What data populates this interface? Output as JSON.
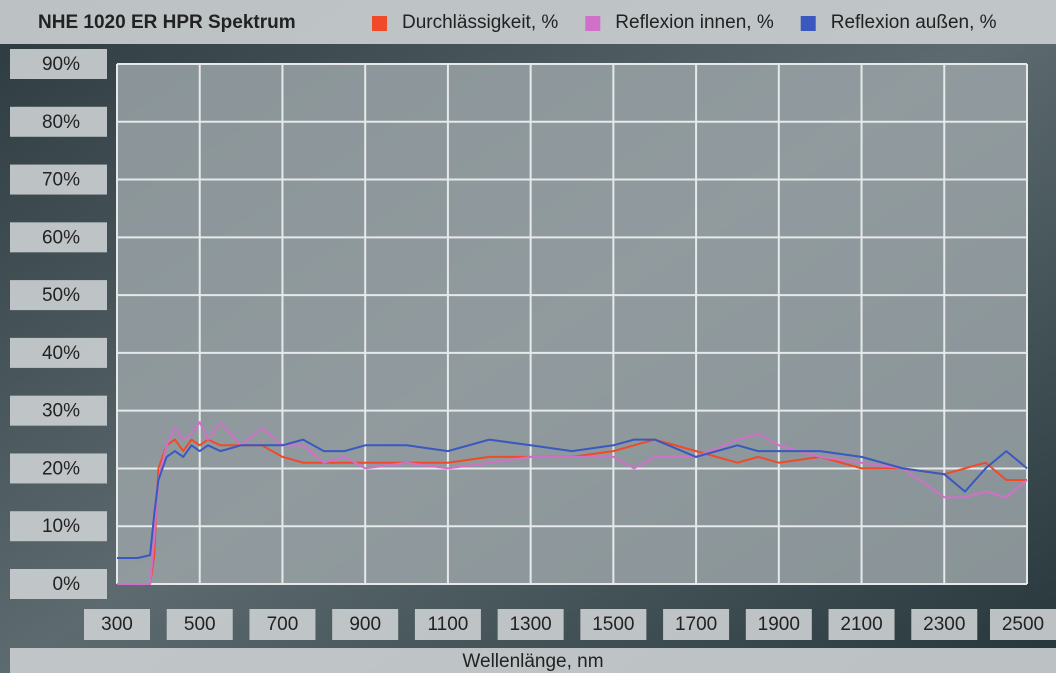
{
  "chart_data": {
    "type": "line",
    "title": "NHE 1020 ER HPR Spektrum",
    "x_label": "Wellenlänge, nm",
    "x": [
      300,
      350,
      380,
      390,
      400,
      420,
      440,
      460,
      480,
      500,
      520,
      550,
      600,
      650,
      700,
      750,
      800,
      850,
      900,
      1000,
      1100,
      1200,
      1300,
      1400,
      1500,
      1550,
      1600,
      1700,
      1800,
      1850,
      1900,
      2000,
      2100,
      2200,
      2300,
      2350,
      2400,
      2450,
      2500
    ],
    "series": [
      {
        "name": "Durchlässigkeit, %",
        "color": "#f04a28",
        "values": [
          0,
          0,
          0,
          5,
          20,
          24,
          25,
          23,
          25,
          24,
          25,
          24,
          24,
          24,
          22,
          21,
          21,
          21,
          21,
          21,
          21,
          22,
          22,
          22,
          23,
          24,
          25,
          23,
          21,
          22,
          21,
          22,
          20,
          20,
          19,
          20,
          21,
          18,
          18
        ]
      },
      {
        "name": "Reflexion innen, %",
        "color": "#d070c8",
        "values": [
          0,
          0,
          0,
          8,
          18,
          24,
          27,
          25,
          26,
          28,
          25,
          28,
          24,
          27,
          24,
          24,
          21,
          22,
          20,
          21,
          20,
          21,
          22,
          22,
          22,
          20,
          22,
          22,
          25,
          26,
          24,
          22,
          21,
          20,
          15,
          15,
          16,
          15,
          18
        ]
      },
      {
        "name": "Reflexion außen, %",
        "color": "#3a58c0",
        "values": [
          4.5,
          4.5,
          5,
          12,
          18,
          22,
          23,
          22,
          24,
          23,
          24,
          23,
          24,
          24,
          24,
          25,
          23,
          23,
          24,
          24,
          23,
          25,
          24,
          23,
          24,
          25,
          25,
          22,
          24,
          23,
          23,
          23,
          22,
          20,
          19,
          16,
          20,
          23,
          20
        ]
      }
    ],
    "xlim": [
      300,
      2500
    ],
    "ylim": [
      0,
      90
    ],
    "xticks": [
      300,
      500,
      700,
      900,
      1100,
      1300,
      1500,
      1700,
      1900,
      2100,
      2300,
      2500
    ],
    "yticks": [
      {
        "value": 0,
        "label": "0%"
      },
      {
        "value": 10,
        "label": "10%"
      },
      {
        "value": 20,
        "label": "20%"
      },
      {
        "value": 30,
        "label": "30%"
      },
      {
        "value": 40,
        "label": "40%"
      },
      {
        "value": 50,
        "label": "50%"
      },
      {
        "value": 60,
        "label": "60%"
      },
      {
        "value": 70,
        "label": "70%"
      },
      {
        "value": 80,
        "label": "80%"
      },
      {
        "value": 90,
        "label": "90%"
      }
    ],
    "grid": true
  }
}
